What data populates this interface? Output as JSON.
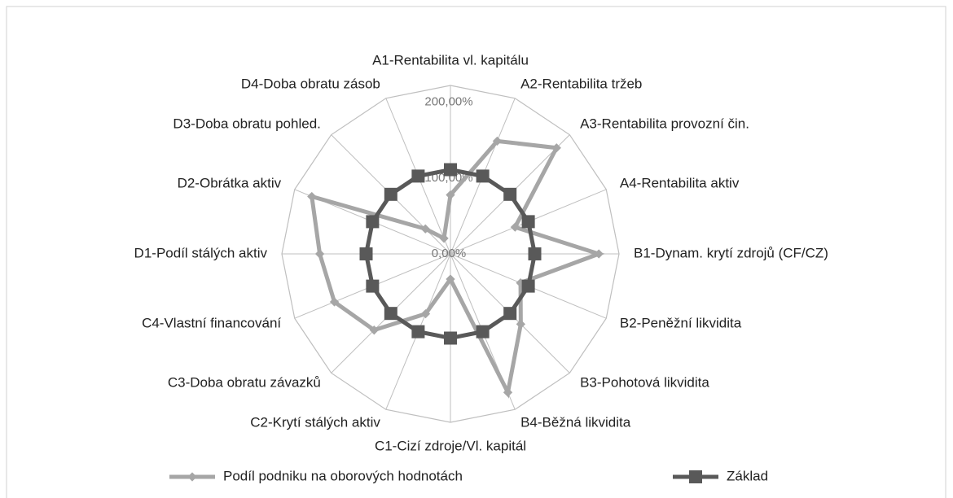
{
  "chart_data": {
    "type": "radar",
    "categories": [
      "A1-Rentabilita vl. kapitálu",
      "A2-Rentabilita tržeb",
      "A3-Rentabilita provozní čin.",
      "A4-Rentabilita aktiv",
      "B1-Dynam. krytí zdrojů (CF/CZ)",
      "B2-Peněžní likvidita",
      "B3-Pohotová likvidita",
      "B4-Běžná likvidita",
      "C1-Cizí zdroje/Vl. kapitál",
      "C2-Krytí stálých aktiv",
      "C3-Doba obratu závazků",
      "C4-Vlastní financování",
      "D1-Podíl stálých aktiv",
      "D2-Obrátka aktiv",
      "D3-Doba obratu pohled.",
      "D4-Doba obratu zásob"
    ],
    "series": [
      {
        "name": "Podíl podniku na oborových hodnotách",
        "color": "#a6a6a6",
        "values": [
          70,
          145,
          178,
          83,
          176,
          90,
          118,
          178,
          30,
          77,
          128,
          149,
          155,
          178,
          42,
          20
        ]
      },
      {
        "name": "Základ",
        "color": "#595959",
        "values": [
          100,
          100,
          100,
          100,
          100,
          100,
          100,
          100,
          100,
          100,
          100,
          100,
          100,
          100,
          100,
          100
        ]
      }
    ],
    "ylim": [
      0,
      200
    ],
    "yticks": [
      {
        "value": 0,
        "label": "0,00%"
      },
      {
        "value": 100,
        "label": "100,00%"
      },
      {
        "value": 200,
        "label": "200,00%"
      }
    ],
    "legend": "bottom"
  }
}
